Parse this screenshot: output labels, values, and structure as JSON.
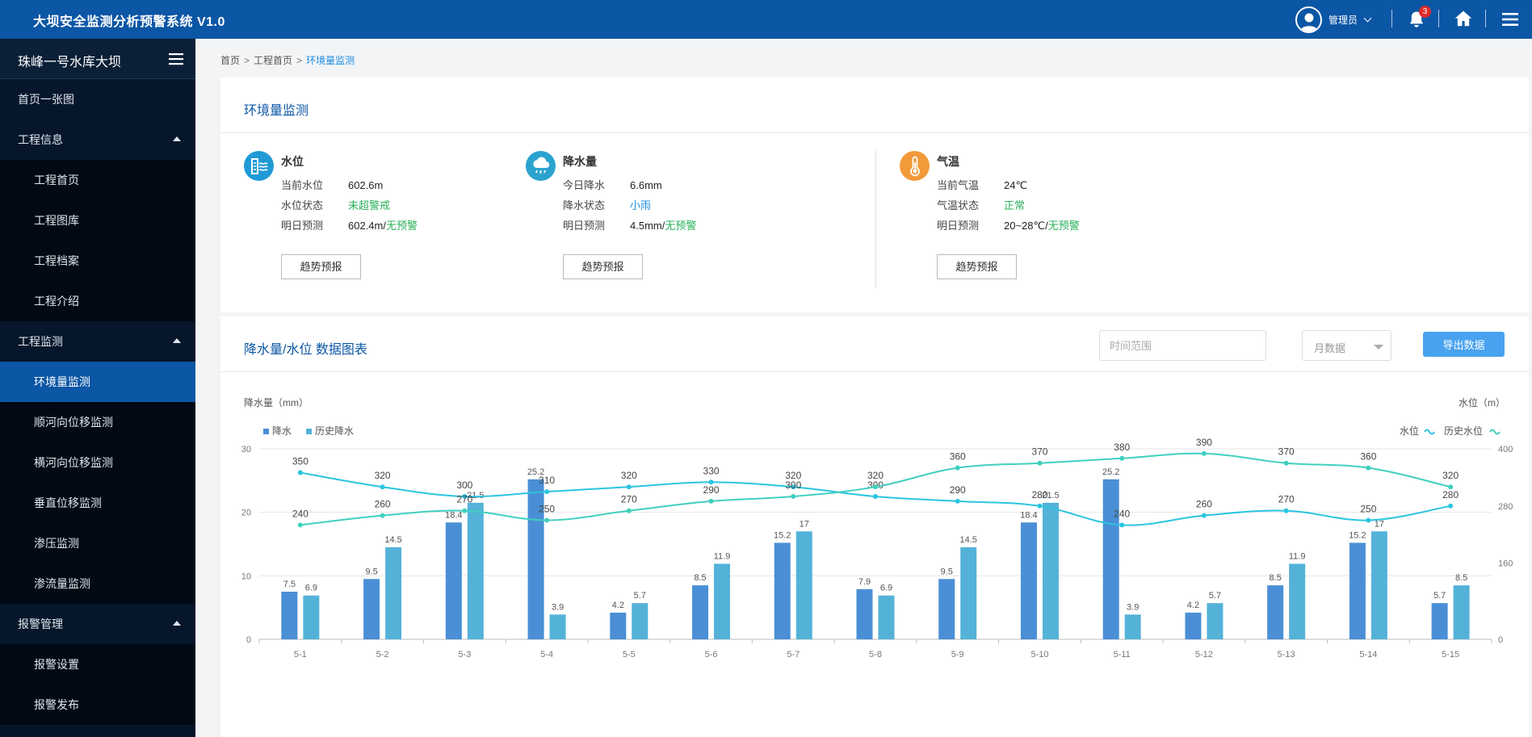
{
  "header": {
    "app_title": "大坝安全监测分析预警系统 V1.0",
    "user_name": "管理员",
    "notification_count": "3"
  },
  "sidebar": {
    "title": "珠峰一号水库大坝",
    "items": [
      {
        "label": "首页一张图",
        "type": "group"
      },
      {
        "label": "工程信息",
        "type": "group",
        "expanded": true
      },
      {
        "label": "工程首页",
        "type": "child"
      },
      {
        "label": "工程图库",
        "type": "child"
      },
      {
        "label": "工程档案",
        "type": "child"
      },
      {
        "label": "工程介绍",
        "type": "child"
      },
      {
        "label": "工程监测",
        "type": "group",
        "expanded": true
      },
      {
        "label": "环境量监测",
        "type": "child",
        "active": true
      },
      {
        "label": "顺河向位移监测",
        "type": "child"
      },
      {
        "label": "横河向位移监测",
        "type": "child"
      },
      {
        "label": "垂直位移监测",
        "type": "child"
      },
      {
        "label": "渗压监测",
        "type": "child"
      },
      {
        "label": "渗流量监测",
        "type": "child"
      },
      {
        "label": "报警管理",
        "type": "group",
        "expanded": true
      },
      {
        "label": "报警设置",
        "type": "child"
      },
      {
        "label": "报警发布",
        "type": "child"
      }
    ]
  },
  "breadcrumb": {
    "items": [
      "首页",
      "工程首页",
      "环境量监测"
    ],
    "separator": ">"
  },
  "env_card": {
    "title": "环境量监测",
    "metrics": [
      {
        "title": "水位",
        "icon": "water-level-icon",
        "icon_color": "#1f9ad6",
        "rows": [
          {
            "label": "当前水位",
            "value": "602.6m",
            "extra": ""
          },
          {
            "label": "水位状态",
            "value": "未超警戒",
            "extra": ""
          },
          {
            "label": "明日预测",
            "value": "602.4m/",
            "extra": "无预警"
          }
        ],
        "button": "趋势预报"
      },
      {
        "title": "降水量",
        "icon": "rain-cloud-icon",
        "icon_color": "#2ba3cf",
        "rows": [
          {
            "label": "今日降水",
            "value": "6.6mm",
            "extra": ""
          },
          {
            "label": "降水状态",
            "value": "小雨",
            "extra": ""
          },
          {
            "label": "明日预测",
            "value": "4.5mm/",
            "extra": "无预警"
          }
        ],
        "button": "趋势预报"
      },
      {
        "title": "气温",
        "icon": "thermometer-icon",
        "icon_color": "#f29a3a",
        "rows": [
          {
            "label": "当前气温",
            "value": "24℃",
            "extra": ""
          },
          {
            "label": "气温状态",
            "value": "正常",
            "extra": ""
          },
          {
            "label": "明日预测",
            "value": "20~28℃/",
            "extra": "无预警"
          }
        ],
        "button": "趋势预报"
      }
    ]
  },
  "chart_card": {
    "title": "降水量/水位 数据图表",
    "time_placeholder": "时间范围",
    "period_value": "月数据",
    "export_label": "导出数据"
  },
  "chart_data": {
    "type": "bar+line",
    "categories": [
      "5-1",
      "5-2",
      "5-3",
      "5-4",
      "5-5",
      "5-6",
      "5-7",
      "5-8",
      "5-9",
      "5-10",
      "5-11",
      "5-12",
      "5-13",
      "5-14",
      "5-15"
    ],
    "ylabel_left": "降水量（mm）",
    "ylabel_right": "水位（m）",
    "ylim_left": [
      0,
      30
    ],
    "yticks_left": [
      0,
      10,
      20,
      30
    ],
    "ylim_right": [
      0,
      400
    ],
    "yticks_right": [
      0,
      160,
      280,
      400
    ],
    "legend_left": [
      "降水",
      "历史降水"
    ],
    "legend_right": [
      "水位",
      "历史水位"
    ],
    "bar_series": [
      {
        "name": "降水",
        "color": "#4a8fd6",
        "values": [
          7.5,
          9.5,
          18.4,
          25.2,
          4.2,
          8.5,
          15.2,
          7.9,
          9.5,
          18.4,
          25.2,
          4.2,
          8.5,
          15.2,
          5.7
        ]
      },
      {
        "name": "历史降水",
        "color": "#54b2d8",
        "values": [
          6.9,
          14.5,
          21.5,
          3.9,
          5.7,
          11.9,
          17,
          6.9,
          14.5,
          21.5,
          3.9,
          5.7,
          11.9,
          17,
          8.5
        ]
      }
    ],
    "line_series": [
      {
        "name": "水位",
        "color": "#2bc4e0",
        "values": [
          350,
          320,
          300,
          310,
          320,
          330,
          320,
          300,
          290,
          280,
          240,
          260,
          270,
          250,
          280
        ]
      },
      {
        "name": "历史水位",
        "color": "#40d0bf",
        "values": [
          240,
          260,
          270,
          250,
          270,
          290,
          300,
          320,
          360,
          370,
          380,
          390,
          370,
          360,
          320
        ]
      }
    ],
    "grid": true,
    "legend_placement": "top"
  }
}
